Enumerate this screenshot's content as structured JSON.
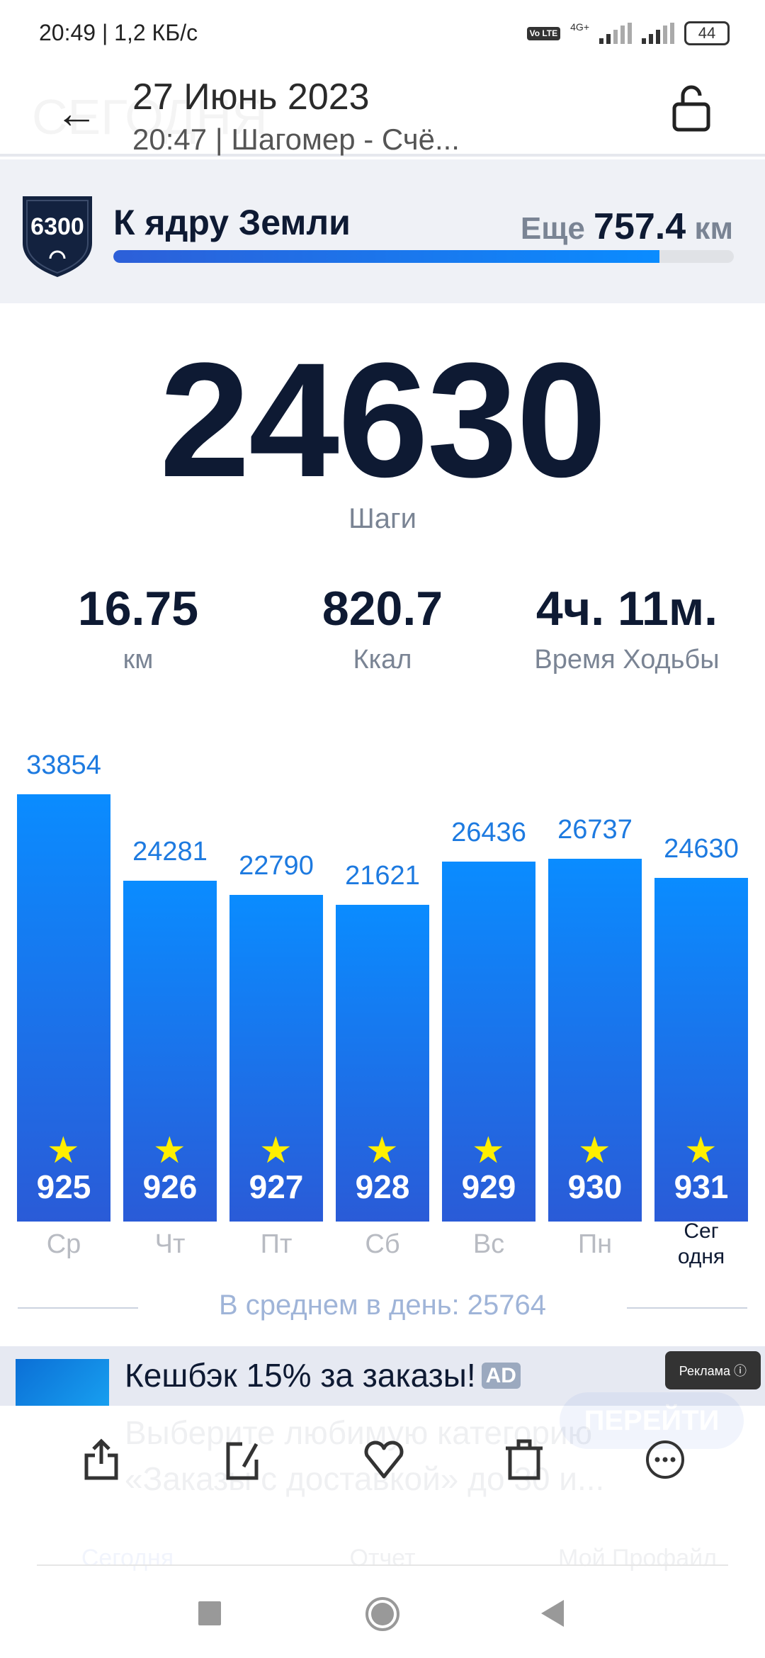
{
  "status_bar": {
    "time": "20:49 | 1,2 КБ/с",
    "network": "4G+",
    "volte": "Vo LTE",
    "battery": "44"
  },
  "header": {
    "title": "27 Июнь 2023",
    "subtitle": "20:47 | Шагомер - Счё...",
    "bg_title": "СЕГОДНЯ"
  },
  "goal": {
    "badge": "6300",
    "name": "К ядру Земли",
    "remaining_prefix": "Еще",
    "remaining_value": "757.4",
    "remaining_unit": "км",
    "progress": 0.88
  },
  "summary": {
    "steps": "24630",
    "steps_label": "Шаги",
    "stats": [
      {
        "value": "16.75",
        "label": "км"
      },
      {
        "value": "820.7",
        "label": "Ккал"
      },
      {
        "value": "4ч. 11м.",
        "label": "Время Ходьбы"
      }
    ]
  },
  "chart_data": {
    "type": "bar",
    "categories": [
      "Ср",
      "Чт",
      "Пт",
      "Сб",
      "Вс",
      "Пн",
      "Сегодня"
    ],
    "day_labels": [
      "Ср",
      "Чт",
      "Пт",
      "Сб",
      "Вс",
      "Пн",
      "Сег\nодня"
    ],
    "values": [
      33854,
      24281,
      22790,
      21621,
      26436,
      26737,
      24630
    ],
    "value_labels": [
      "33854",
      "24281",
      "22790",
      "21621",
      "26436",
      "26737",
      "24630"
    ],
    "badges": [
      "925",
      "926",
      "927",
      "928",
      "929",
      "930",
      "931"
    ],
    "bar_color_top": "#0a8cff",
    "bar_color_bottom": "#2a5bd7",
    "star_color": "#ffef00"
  },
  "average": "В среднем в день: 25764",
  "ad": {
    "title": "Кешбэк 15% за заказы!",
    "badge": "AD",
    "label": "Реклама",
    "text1": "Выберите любимую категорию",
    "text2": "«Заказы с доставкой» до 30 и...",
    "button": "ПЕРЕЙТИ"
  },
  "actions": [
    "share-icon",
    "edit-icon",
    "heart-icon",
    "trash-icon",
    "more-icon"
  ],
  "bottom_nav": [
    {
      "label": "Сегодня"
    },
    {
      "label": "Отчет"
    },
    {
      "label": "Мой Профайл"
    }
  ]
}
